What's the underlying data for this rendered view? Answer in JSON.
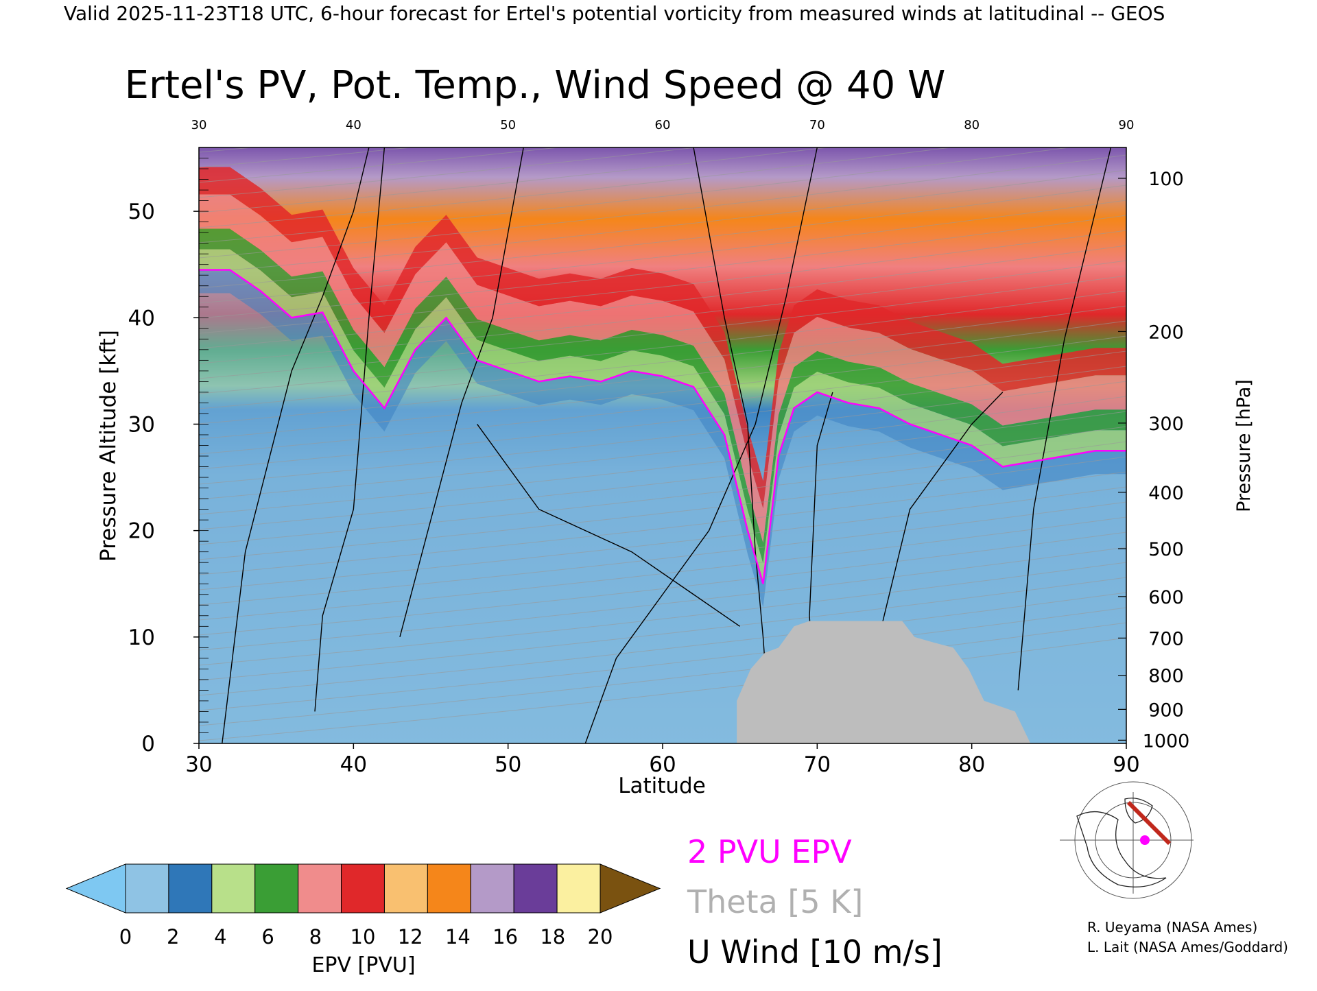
{
  "header": {
    "valid_line": "Valid 2025-11-23T18 UTC, 6-hour forecast for Ertel's potential vorticity from measured winds at latitudinal -- GEOS"
  },
  "chart_data": {
    "type": "heatmap",
    "title": "Ertel's PV, Pot. Temp., Wind Speed @ 40 W",
    "xlabel": "Latitude",
    "ylabel": "Pressure Altitude [kft]",
    "y2label": "Pressure [hPa]",
    "xlim": [
      30,
      90
    ],
    "ylim": [
      0,
      56
    ],
    "x_ticks": [
      30,
      40,
      50,
      60,
      70,
      80,
      90
    ],
    "top_ticks": [
      30,
      40,
      50,
      60,
      70,
      80,
      90
    ],
    "y_ticks": [
      0,
      10,
      20,
      30,
      40,
      50
    ],
    "pressure_ticks": [
      {
        "hpa": "100",
        "kft": 53.1
      },
      {
        "hpa": "200",
        "kft": 38.7
      },
      {
        "hpa": "300",
        "kft": 30.1
      },
      {
        "hpa": "400",
        "kft": 23.6
      },
      {
        "hpa": "500",
        "kft": 18.3
      },
      {
        "hpa": "600",
        "kft": 13.8
      },
      {
        "hpa": "700",
        "kft": 9.9
      },
      {
        "hpa": "800",
        "kft": 6.4
      },
      {
        "hpa": "900",
        "kft": 3.2
      },
      {
        "hpa": "1000",
        "kft": 0.3
      }
    ],
    "tropopause_2pvu_kft": [
      [
        30,
        44.5
      ],
      [
        32,
        44.5
      ],
      [
        34,
        42.5
      ],
      [
        36,
        40
      ],
      [
        38,
        40.5
      ],
      [
        40,
        35
      ],
      [
        42,
        31.5
      ],
      [
        44,
        37
      ],
      [
        46,
        40
      ],
      [
        48,
        36
      ],
      [
        50,
        35
      ],
      [
        52,
        34
      ],
      [
        54,
        34.5
      ],
      [
        56,
        34
      ],
      [
        58,
        35
      ],
      [
        60,
        34.5
      ],
      [
        62,
        33.5
      ],
      [
        64,
        29
      ],
      [
        65.5,
        20
      ],
      [
        66.5,
        15
      ],
      [
        67.5,
        27
      ],
      [
        68.5,
        31.5
      ],
      [
        70,
        33
      ],
      [
        72,
        32
      ],
      [
        74,
        31.5
      ],
      [
        76,
        30
      ],
      [
        78,
        29
      ],
      [
        80,
        28
      ],
      [
        82,
        26
      ],
      [
        84,
        26.5
      ],
      [
        86,
        27
      ],
      [
        88,
        27.5
      ],
      [
        90,
        27.5
      ]
    ],
    "terrain_kft": [
      [
        64.8,
        4
      ],
      [
        65.7,
        7
      ],
      [
        66.6,
        8.5
      ],
      [
        67.5,
        9
      ],
      [
        68.5,
        11
      ],
      [
        69.5,
        11.5
      ],
      [
        71,
        11.5
      ],
      [
        72,
        11.5
      ],
      [
        74,
        11.5
      ],
      [
        75.5,
        11.5
      ],
      [
        76.3,
        10
      ],
      [
        77.5,
        9.5
      ],
      [
        78.8,
        9
      ],
      [
        79.8,
        7
      ],
      [
        80.8,
        4
      ],
      [
        82.8,
        3
      ],
      [
        83.8,
        0
      ]
    ],
    "colorbar": {
      "label": "EPV [PVU]",
      "tick_labels": [
        "0",
        "2",
        "4",
        "6",
        "8",
        "10",
        "12",
        "14",
        "16",
        "18",
        "20"
      ],
      "under_color": "#7ec8f2",
      "over_color": "#7a5210",
      "colors": [
        "#8fc3e4",
        "#2f77b8",
        "#b8e08a",
        "#3a9e35",
        "#f08c8c",
        "#e0282a",
        "#f9c070",
        "#f5861a",
        "#b49ac8",
        "#6a3d99",
        "#fbf0a0"
      ]
    },
    "legend": [
      {
        "label": "2 PVU EPV",
        "color": "#ff00ff"
      },
      {
        "label": "Theta [5 K]",
        "color": "#b0b0b0"
      },
      {
        "label": "U Wind [10 m/s]",
        "color": "#000000"
      }
    ]
  },
  "credits": [
    "R. Ueyama (NASA Ames)",
    "L. Lait (NASA Ames/Goddard)"
  ]
}
